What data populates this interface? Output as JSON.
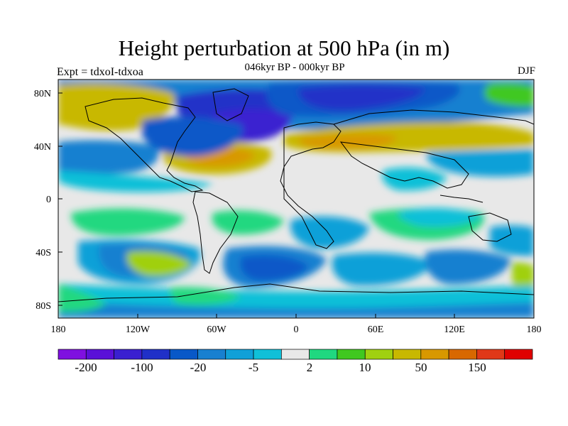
{
  "title": "Height perturbation at 500 hPa (in m)",
  "subtitle": "046kyr BP - 000kyr BP",
  "expt_label": "Expt = tdxoI-tdxoa",
  "season": "DJF",
  "map": {
    "lat_ticks": [
      "80N",
      "40N",
      "0",
      "40S",
      "80S"
    ],
    "lon_ticks": [
      "180",
      "120W",
      "60W",
      "0",
      "60E",
      "120E",
      "180"
    ]
  },
  "colorbar": {
    "colors": [
      "#7f10e0",
      "#5a10d8",
      "#3a20d0",
      "#2030c8",
      "#0858c8",
      "#1880d0",
      "#10a0d8",
      "#10c0d8",
      "#e8e8e8",
      "#20d880",
      "#40c820",
      "#a0d010",
      "#c8b800",
      "#d89800",
      "#d86800",
      "#e03818",
      "#e00000"
    ],
    "labels": [
      "-200",
      "-100",
      "-20",
      "-5",
      "2",
      "10",
      "50",
      "150"
    ]
  },
  "chart_data": {
    "type": "heatmap",
    "title": "Height perturbation at 500 hPa (in m)",
    "subtitle": "046kyr BP - 000kyr BP",
    "season": "DJF",
    "xlabel": "",
    "ylabel": "",
    "x_ticks": [
      "180",
      "120W",
      "60W",
      "0",
      "60E",
      "120E",
      "180"
    ],
    "y_ticks": [
      "80N",
      "40N",
      "0",
      "40S",
      "80S"
    ],
    "xlim": [
      -180,
      180
    ],
    "ylim": [
      -90,
      90
    ],
    "contour_levels": [
      -200,
      -150,
      -100,
      -50,
      -20,
      -10,
      -5,
      -2,
      2,
      5,
      10,
      20,
      50,
      100,
      150,
      200
    ],
    "features": [
      {
        "region": "North Atlantic / Europe",
        "value_range": [
          -200,
          -100
        ]
      },
      {
        "region": "Arctic / North America",
        "value_range": [
          -100,
          -20
        ]
      },
      {
        "region": "North Pacific & Eurasia mid-latitudes",
        "value_range": [
          50,
          100
        ]
      },
      {
        "region": "Tropics",
        "value_range": [
          -2,
          2
        ]
      },
      {
        "region": "Southern Ocean",
        "value_range": [
          -100,
          -20
        ]
      }
    ]
  }
}
